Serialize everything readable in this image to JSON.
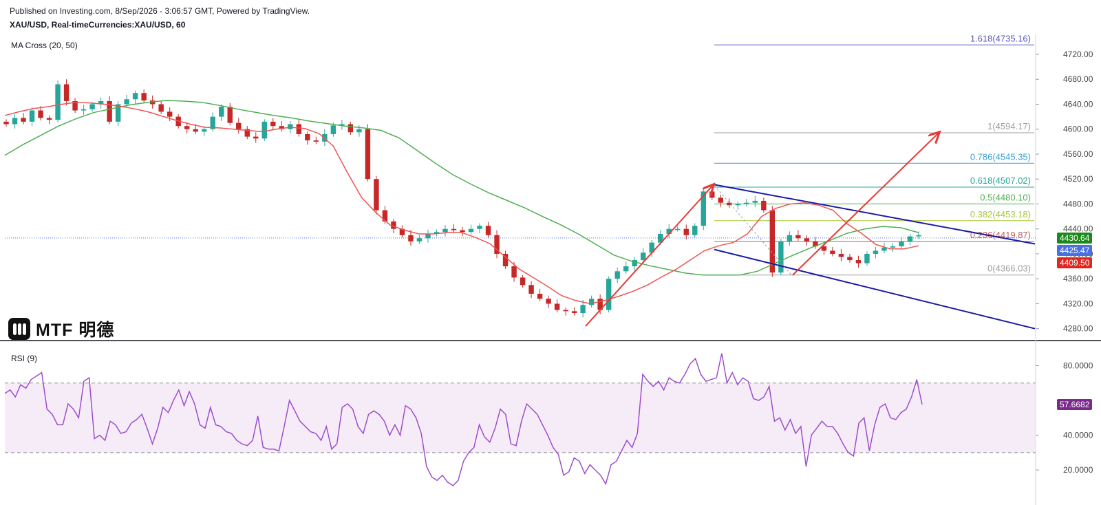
{
  "header": {
    "published": "Published on Investing.com, 8/Sep/2026 - 3:06:57 GMT, Powered by TradingView.",
    "symbol": "XAU/USD, Real-timeCurrencies:XAU/USD, 60"
  },
  "indicators": {
    "ma_label": "MA Cross (20, 50)",
    "rsi_label": "RSI (9)"
  },
  "logo": {
    "text": "MTF 明德"
  },
  "price_badges": [
    {
      "value": "4430.64",
      "color": "#1b8a1b"
    },
    {
      "value": "4425.47",
      "color": "#4a6fe0"
    },
    {
      "value": "4409.50",
      "color": "#e0261f"
    }
  ],
  "rsi_badge": {
    "value": "57.6682",
    "color": "#7a2a8a"
  },
  "chart_data": [
    {
      "type": "candlestick",
      "title": "XAU/USD, 60",
      "ylim": [
        4262,
        4752
      ],
      "y_ticks": [
        "4720.00",
        "4680.00",
        "4640.00",
        "4600.00",
        "4560.00",
        "4520.00",
        "4480.00",
        "4440.00",
        "4400.00",
        "4360.00",
        "4320.00",
        "4280.00"
      ],
      "close_path": [
        4608,
        4618,
        4612,
        4630,
        4618,
        4615,
        4672,
        4645,
        4630,
        4632,
        4640,
        4645,
        4612,
        4640,
        4648,
        4658,
        4646,
        4640,
        4628,
        4620,
        4605,
        4600,
        4596,
        4600,
        4620,
        4636,
        4610,
        4600,
        4588,
        4585,
        4612,
        4605,
        4600,
        4608,
        4592,
        4582,
        4580,
        4592,
        4606,
        4608,
        4595,
        4600,
        4520,
        4470,
        4452,
        4440,
        4430,
        4420,
        4425,
        4432,
        4435,
        4440,
        4438,
        4435,
        4440,
        4445,
        4430,
        4400,
        4380,
        4362,
        4350,
        4336,
        4328,
        4320,
        4310,
        4308,
        4305,
        4318,
        4328,
        4310,
        4360,
        4372,
        4380,
        4390,
        4402,
        4418,
        4432,
        4440,
        4440,
        4430,
        4445,
        4500,
        4490,
        4482,
        4478,
        4480,
        4482,
        4485,
        4470,
        4370,
        4420,
        4430,
        4425,
        4420,
        4412,
        4405,
        4400,
        4395,
        4390,
        4385,
        4400,
        4405,
        4410,
        4412,
        4420,
        4428,
        4430
      ],
      "ma20": [
        4622,
        4628,
        4633,
        4636,
        4640,
        4643,
        4642,
        4640,
        4637,
        4633,
        4628,
        4621,
        4614,
        4608,
        4603,
        4602,
        4600,
        4598,
        4596,
        4600,
        4603,
        4601,
        4593,
        4573,
        4530,
        4490,
        4466,
        4446,
        4438,
        4432,
        4432,
        4434,
        4434,
        4426,
        4416,
        4396,
        4376,
        4362,
        4348,
        4333,
        4325,
        4320,
        4325,
        4332,
        4340,
        4350,
        4363,
        4375,
        4390,
        4405,
        4413,
        4418,
        4432,
        4460,
        4473,
        4480,
        4482,
        4478,
        4470,
        4448,
        4433,
        4415,
        4408,
        4408,
        4413
      ],
      "ma50": [
        4558,
        4575,
        4590,
        4605,
        4617,
        4627,
        4633,
        4639,
        4643,
        4646,
        4645,
        4643,
        4638,
        4632,
        4627,
        4622,
        4618,
        4613,
        4609,
        4605,
        4602,
        4598,
        4586,
        4566,
        4546,
        4527,
        4512,
        4498,
        4486,
        4474,
        4460,
        4447,
        4432,
        4415,
        4398,
        4388,
        4381,
        4375,
        4369,
        4366,
        4366,
        4366,
        4372,
        4385,
        4398,
        4410,
        4421,
        4433,
        4440,
        4444,
        4442,
        4434
      ],
      "fibonacci": [
        {
          "label": "0(4366.03)",
          "value": 4366.03,
          "color": "#9e9e9e"
        },
        {
          "label": "0.236(4419.87)",
          "value": 4419.87,
          "color": "#c25a5a"
        },
        {
          "label": "0.382(4453.18)",
          "value": 4453.18,
          "color": "#a8c53a"
        },
        {
          "label": "0.5(4480.10)",
          "value": 4480.1,
          "color": "#4caf50"
        },
        {
          "label": "0.618(4507.02)",
          "value": 4507.02,
          "color": "#26a69a"
        },
        {
          "label": "0.786(4545.35)",
          "value": 4545.35,
          "color": "#3aa0d8"
        },
        {
          "label": "1(4594.17)",
          "value": 4594.17,
          "color": "#9e9e9e"
        },
        {
          "label": "1.618(4735.16)",
          "value": 4735.16,
          "color": "#5b57b8"
        }
      ],
      "channel": {
        "upper": [
          [
            0,
            4511
          ],
          [
            1,
            4416
          ]
        ],
        "lower": [
          [
            0,
            4407
          ],
          [
            1,
            4280
          ]
        ]
      },
      "last_price": 4425.47
    },
    {
      "type": "line",
      "title": "RSI (9)",
      "ylim": [
        7,
        94
      ],
      "y_ticks": [
        "80.0000",
        "40.0000",
        "20.0000"
      ],
      "band": [
        30,
        70
      ],
      "values": [
        64,
        66,
        62,
        69,
        67,
        72,
        74,
        76,
        55,
        52,
        46,
        46,
        58,
        55,
        50,
        71,
        73,
        38,
        40,
        37,
        48,
        46,
        41,
        42,
        47,
        49,
        52,
        44,
        35,
        44,
        56,
        53,
        60,
        66,
        57,
        65,
        58,
        46,
        44,
        56,
        46,
        45,
        42,
        41,
        37,
        35,
        34,
        37,
        51,
        33,
        32,
        32,
        31,
        45,
        60,
        54,
        48,
        45,
        42,
        41,
        37,
        45,
        32,
        35,
        56,
        58,
        55,
        45,
        41,
        52,
        54,
        52,
        48,
        40,
        46,
        40,
        57,
        55,
        50,
        41,
        22,
        16,
        14,
        17,
        13,
        11,
        14,
        25,
        30,
        33,
        46,
        39,
        36,
        44,
        55,
        52,
        35,
        34,
        48,
        58,
        55,
        52,
        46,
        40,
        33,
        29,
        17,
        19,
        27,
        25,
        18,
        23,
        20,
        17,
        12,
        23,
        25,
        31,
        37,
        33,
        41,
        75,
        71,
        68,
        71,
        66,
        73,
        71,
        70,
        75,
        81,
        84,
        75,
        71,
        72,
        73,
        87,
        70,
        76,
        69,
        73,
        71,
        61,
        60,
        62,
        68,
        48,
        50,
        43,
        49,
        41,
        45,
        22,
        40,
        44,
        48,
        45,
        45,
        41,
        35,
        30,
        28,
        47,
        50,
        31,
        46,
        56,
        58,
        50,
        49,
        53,
        55,
        62,
        72,
        57.6682
      ]
    }
  ]
}
